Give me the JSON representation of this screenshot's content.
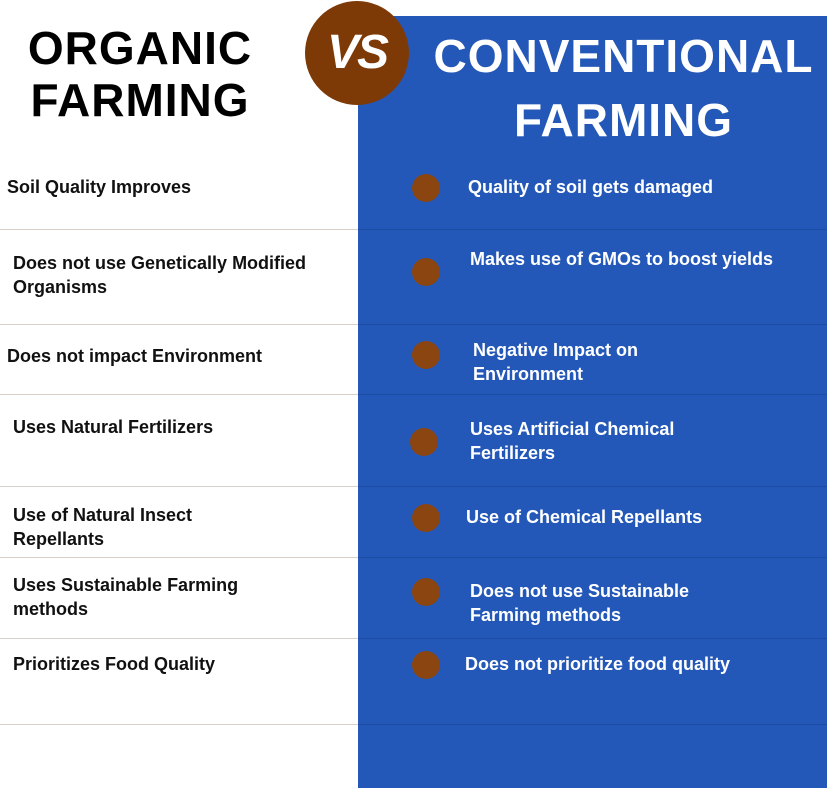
{
  "header": {
    "left_title": "ORGANIC FARMING",
    "vs": "VS",
    "right_title": "CONVENTIONAL FARMING"
  },
  "colors": {
    "blue_panel": "#2358b8",
    "vs_circle": "#7e3a06",
    "bullet": "#8b4510"
  },
  "rows": [
    {
      "organic": "Soil Quality Improves",
      "conventional": "Quality of soil gets  damaged"
    },
    {
      "organic": "Does not use Genetically Modified Organisms",
      "conventional": "Makes use of GMOs to boost yields"
    },
    {
      "organic": "Does not impact Environment",
      "conventional": "Negative Impact on Environment"
    },
    {
      "organic": "Uses Natural Fertilizers",
      "conventional": "Uses Artificial Chemical Fertilizers"
    },
    {
      "organic": "Use of Natural Insect Repellants",
      "conventional": "Use of Chemical Repellants"
    },
    {
      "organic": "Uses Sustainable Farming methods",
      "conventional": "Does not use Sustainable Farming methods"
    },
    {
      "organic": "Prioritizes Food Quality",
      "conventional": "Does not prioritize food quality"
    }
  ]
}
